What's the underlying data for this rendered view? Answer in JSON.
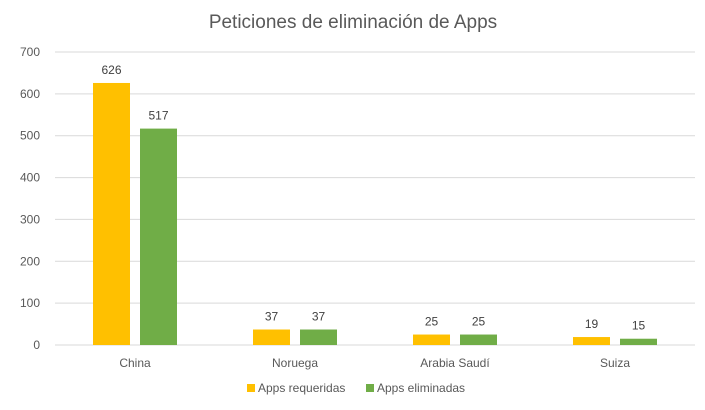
{
  "chart_data": {
    "type": "bar",
    "title": "Peticiones de eliminación de Apps",
    "xlabel": "",
    "ylabel": "",
    "categories": [
      "China",
      "Noruega",
      "Arabia Saudí",
      "Suiza"
    ],
    "series": [
      {
        "name": "Apps requeridas",
        "values": [
          626,
          37,
          25,
          19
        ],
        "color": "#FFC000"
      },
      {
        "name": "Apps eliminadas",
        "values": [
          517,
          37,
          25,
          15
        ],
        "color": "#70AD47"
      }
    ],
    "ylim": [
      0,
      700
    ],
    "yticks": [
      "0",
      "100",
      "200",
      "300",
      "400",
      "500",
      "600",
      "700"
    ],
    "grid": true,
    "legend_position": "bottom"
  }
}
